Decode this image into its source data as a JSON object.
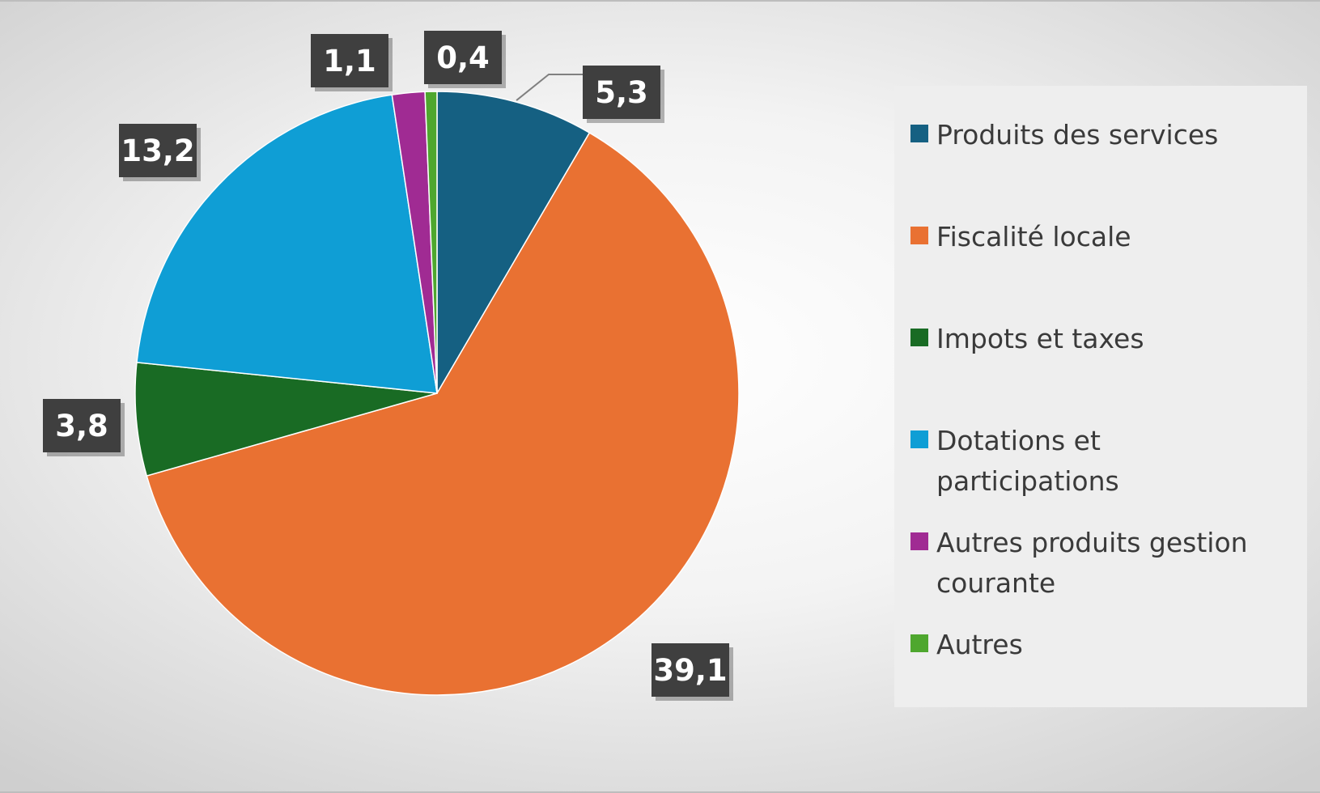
{
  "chart_data": {
    "type": "pie",
    "title": "",
    "legend_position": "right",
    "start_angle_deg": 0,
    "direction": "clockwise",
    "slices": [
      {
        "name": "Produits des services",
        "value": 5.3,
        "label": "5,3",
        "color": "#156082"
      },
      {
        "name": "Fiscalité locale",
        "value": 39.1,
        "label": "39,1",
        "color": "#E97132"
      },
      {
        "name": "Impots et taxes",
        "value": 3.8,
        "label": "3,8",
        "color": "#196B24"
      },
      {
        "name": "Dotations et participations",
        "value": 13.2,
        "label": "13,2",
        "color": "#0F9ED5"
      },
      {
        "name": "Autres produits gestion courante",
        "value": 1.1,
        "label": "1,1",
        "color": "#A02B93"
      },
      {
        "name": "Autres",
        "value": 0.4,
        "label": "0,4",
        "color": "#4EA72E"
      }
    ]
  }
}
